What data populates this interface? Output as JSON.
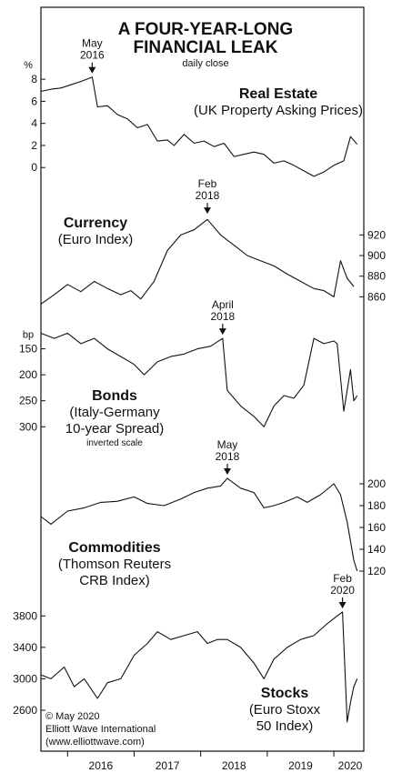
{
  "title_line1": "A FOUR-YEAR-LONG",
  "title_line2": "FINANCIAL LEAK",
  "subtitle": "daily close",
  "footer": {
    "copyright": "© May 2020",
    "org": "Elliott Wave International",
    "url": "(www.elliottwave.com)"
  },
  "x_axis": {
    "ticks": [
      "2016",
      "2017",
      "2018",
      "2019",
      "2020"
    ],
    "range": [
      2015.6,
      2020.45
    ]
  },
  "chart_data": [
    {
      "type": "line",
      "name": "real-estate",
      "title_lines": [
        "Real Estate",
        "(UK Property Asking Prices)"
      ],
      "unit_label": "%",
      "ylim": [
        -1.3,
        9
      ],
      "yticks": [
        "8",
        "6",
        "4",
        "2",
        "0"
      ],
      "ytick_values": [
        8,
        6,
        4,
        2,
        0
      ],
      "axis_side": "left",
      "annotation": {
        "lines": [
          "May",
          "2016"
        ],
        "x": 2016.37,
        "y": 8.2
      },
      "x": [
        2015.6,
        2015.75,
        2015.9,
        2016.05,
        2016.2,
        2016.37,
        2016.45,
        2016.6,
        2016.75,
        2016.9,
        2017.05,
        2017.2,
        2017.35,
        2017.5,
        2017.6,
        2017.75,
        2017.9,
        2018.05,
        2018.2,
        2018.35,
        2018.5,
        2018.65,
        2018.8,
        2018.95,
        2019.1,
        2019.25,
        2019.4,
        2019.55,
        2019.7,
        2019.85,
        2020.0,
        2020.15,
        2020.25,
        2020.35
      ],
      "values": [
        6.9,
        7.1,
        7.2,
        7.5,
        7.8,
        8.2,
        5.5,
        5.6,
        4.8,
        4.4,
        3.6,
        3.9,
        2.4,
        2.5,
        2.0,
        3.0,
        2.2,
        2.4,
        1.9,
        2.2,
        1.0,
        1.2,
        1.4,
        1.2,
        0.4,
        0.6,
        0.2,
        -0.3,
        -0.8,
        -0.4,
        0.2,
        0.6,
        2.8,
        2.1
      ]
    },
    {
      "type": "line",
      "name": "currency",
      "title_lines": [
        "Currency",
        "(Euro Index)"
      ],
      "ylim": [
        848,
        945
      ],
      "yticks": [
        "920",
        "900",
        "880",
        "860"
      ],
      "ytick_values": [
        920,
        900,
        880,
        860
      ],
      "axis_side": "right",
      "annotation": {
        "lines": [
          "Feb",
          "2018"
        ],
        "x": 2018.1,
        "y": 937
      },
      "x": [
        2015.6,
        2015.8,
        2016.0,
        2016.2,
        2016.4,
        2016.6,
        2016.8,
        2016.95,
        2017.1,
        2017.3,
        2017.5,
        2017.7,
        2017.9,
        2018.1,
        2018.3,
        2018.5,
        2018.7,
        2018.9,
        2019.1,
        2019.3,
        2019.5,
        2019.7,
        2019.85,
        2020.0,
        2020.1,
        2020.2,
        2020.3
      ],
      "values": [
        853,
        862,
        872,
        865,
        875,
        868,
        862,
        866,
        858,
        875,
        905,
        920,
        925,
        935,
        920,
        910,
        900,
        895,
        890,
        882,
        875,
        868,
        866,
        860,
        895,
        878,
        870
      ]
    },
    {
      "type": "line",
      "name": "bonds",
      "title_lines": [
        "Bonds",
        "(Italy-Germany",
        "10-year Spread)"
      ],
      "note": "inverted scale",
      "unit_label": "bp",
      "inverted": true,
      "ylim": [
        310,
        100
      ],
      "yticks": [
        "150",
        "200",
        "250",
        "300"
      ],
      "ytick_values": [
        150,
        200,
        250,
        300
      ],
      "axis_side": "left",
      "annotation": {
        "lines": [
          "April",
          "2018"
        ],
        "x": 2018.33,
        "y": 130
      },
      "x": [
        2015.6,
        2015.8,
        2016.0,
        2016.2,
        2016.4,
        2016.6,
        2016.8,
        2017.0,
        2017.15,
        2017.35,
        2017.55,
        2017.75,
        2017.95,
        2018.15,
        2018.33,
        2018.4,
        2018.6,
        2018.8,
        2018.95,
        2019.1,
        2019.25,
        2019.4,
        2019.55,
        2019.7,
        2019.85,
        2020.0,
        2020.05,
        2020.15,
        2020.25,
        2020.3,
        2020.35
      ],
      "values": [
        120,
        130,
        120,
        140,
        130,
        150,
        165,
        180,
        200,
        175,
        165,
        160,
        150,
        145,
        130,
        230,
        260,
        280,
        300,
        260,
        240,
        245,
        220,
        130,
        140,
        135,
        140,
        270,
        190,
        250,
        240
      ]
    },
    {
      "type": "line",
      "name": "commodities",
      "title_lines": [
        "Commodities",
        "(Thomson Reuters",
        "CRB Index)"
      ],
      "ylim": [
        110,
        210
      ],
      "yticks": [
        "200",
        "180",
        "160",
        "140",
        "120"
      ],
      "ytick_values": [
        200,
        180,
        160,
        140,
        120
      ],
      "axis_side": "right",
      "annotation": {
        "lines": [
          "May",
          "2018"
        ],
        "x": 2018.4,
        "y": 205
      },
      "x": [
        2015.6,
        2015.75,
        2016.0,
        2016.25,
        2016.5,
        2016.75,
        2017.0,
        2017.2,
        2017.45,
        2017.7,
        2017.9,
        2018.1,
        2018.3,
        2018.4,
        2018.6,
        2018.8,
        2018.95,
        2019.1,
        2019.25,
        2019.45,
        2019.6,
        2019.8,
        2020.0,
        2020.1,
        2020.2,
        2020.3,
        2020.35
      ],
      "values": [
        170,
        163,
        175,
        178,
        183,
        184,
        188,
        182,
        180,
        186,
        192,
        196,
        198,
        205,
        196,
        192,
        178,
        180,
        183,
        188,
        183,
        190,
        200,
        190,
        165,
        130,
        120
      ]
    },
    {
      "type": "line",
      "name": "stocks",
      "title_lines": [
        "Stocks",
        "(Euro Stoxx",
        "50 Index)"
      ],
      "ylim": [
        2380,
        4000
      ],
      "yticks": [
        "3800",
        "3400",
        "3000",
        "2600"
      ],
      "ytick_values": [
        3800,
        3400,
        3000,
        2600
      ],
      "axis_side": "left",
      "annotation": {
        "lines": [
          "Feb",
          "2020"
        ],
        "x": 2020.13,
        "y": 3850
      },
      "x": [
        2015.6,
        2015.75,
        2015.95,
        2016.1,
        2016.25,
        2016.45,
        2016.6,
        2016.8,
        2017.0,
        2017.2,
        2017.35,
        2017.55,
        2017.75,
        2017.95,
        2018.1,
        2018.25,
        2018.4,
        2018.6,
        2018.8,
        2018.95,
        2019.1,
        2019.3,
        2019.5,
        2019.7,
        2019.9,
        2020.05,
        2020.13,
        2020.2,
        2020.25,
        2020.3,
        2020.35
      ],
      "values": [
        3050,
        3000,
        3150,
        2900,
        3000,
        2750,
        2950,
        3000,
        3300,
        3450,
        3600,
        3500,
        3550,
        3600,
        3450,
        3500,
        3500,
        3400,
        3200,
        3000,
        3250,
        3400,
        3500,
        3550,
        3700,
        3800,
        3850,
        2450,
        2700,
        2900,
        3000
      ]
    }
  ]
}
